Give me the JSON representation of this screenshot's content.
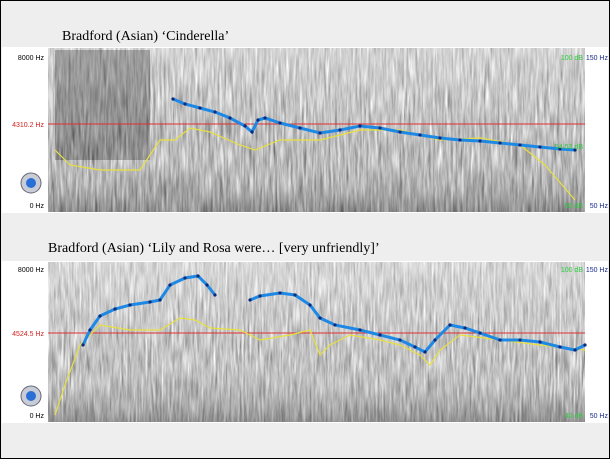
{
  "panels": [
    {
      "caption": "Bradford (Asian)  ‘Cinderella’",
      "left_labels": [
        "8000 Hz",
        "4310.2 Hz",
        "0 Hz"
      ],
      "right_labels": [
        "100 dB",
        "150 Hz",
        "54.53 dB",
        "50 dB",
        "50 Hz"
      ]
    },
    {
      "caption": "Bradford (Asian)  ‘Lily and Rosa were… [very unfriendly]’",
      "left_labels": [
        "8000 Hz",
        "4524.5 Hz",
        "0 Hz"
      ],
      "right_labels": [
        "100 dB",
        "150 Hz",
        "40 dB",
        "50 Hz"
      ]
    }
  ]
}
